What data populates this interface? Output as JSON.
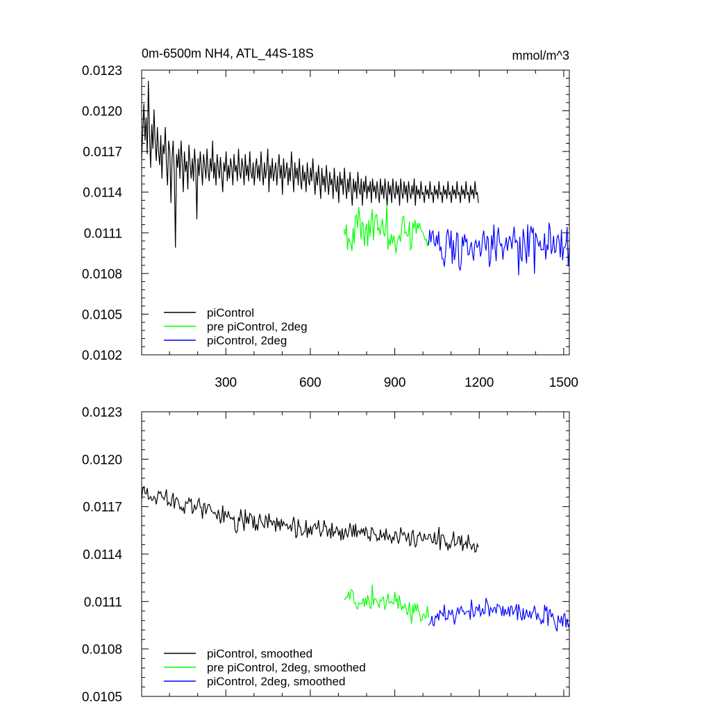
{
  "colors": {
    "piControl": "#000000",
    "pre_piControl_2deg": "#00ff00",
    "piControl_2deg": "#0000ff",
    "background": "#ffffff"
  },
  "chart_data": [
    {
      "type": "line",
      "title_left": "0m-6500m NH4, ATL_44S-18S",
      "title_right": "mmol/m^3",
      "xlabel": "",
      "ylabel": "",
      "xlim": [
        1,
        1520
      ],
      "ylim": [
        0.0102,
        0.0123
      ],
      "x_ticks": [
        300,
        600,
        900,
        1200,
        1500
      ],
      "x_tick_labels": [
        "300",
        "600",
        "900",
        "1200",
        "1500"
      ],
      "y_ticks": [
        0.0102,
        0.0105,
        0.0108,
        0.0111,
        0.0114,
        0.0117,
        0.012,
        0.0123
      ],
      "y_tick_labels": [
        "0.0102",
        "0.0105",
        "0.0108",
        "0.0111",
        "0.0114",
        "0.0117",
        "0.0120",
        "0.0123"
      ],
      "legend_position": "bottom-left",
      "grid": false,
      "series": [
        {
          "name": "piControl",
          "color": "#000000",
          "x_start": 1,
          "x_end": 1200,
          "step": 4,
          "trend": [
            [
              1,
              0.01175
            ],
            [
              300,
              0.0116
            ],
            [
              600,
              0.01155
            ],
            [
              900,
              0.01152
            ],
            [
              1200,
              0.01145
            ]
          ],
          "noise_amplitude": 0.00028,
          "values": [
            0.01165,
            0.01185,
            0.01205,
            0.01178,
            0.01195,
            0.01168,
            0.01222,
            0.01182,
            0.01158,
            0.0119,
            0.01172,
            0.01201,
            0.01176,
            0.01163,
            0.01188,
            0.0117,
            0.0116,
            0.01182,
            0.0115,
            0.01175,
            0.01168,
            0.01188,
            0.0116,
            0.01145,
            0.01178,
            0.0117,
            0.01132,
            0.01165,
            0.01178,
            0.01154,
            0.01099,
            0.01168,
            0.01158,
            0.01172,
            0.0115,
            0.01178,
            0.01162,
            0.0114,
            0.0117,
            0.01155,
            0.01163,
            0.01142,
            0.01175,
            0.0116,
            0.0115,
            0.01165,
            0.01148,
            0.01172,
            0.01158,
            0.0112,
            0.01165,
            0.01152,
            0.0117,
            0.01158,
            0.01145,
            0.01168,
            0.0116,
            0.0115,
            0.01172,
            0.01156,
            0.01148,
            0.01165,
            0.01155,
            0.01178,
            0.0115,
            0.01162,
            0.01145,
            0.01168,
            0.01158,
            0.0115,
            0.01166,
            0.01152,
            0.0114,
            0.01162,
            0.01155,
            0.0117,
            0.01148,
            0.0116,
            0.0115,
            0.01165,
            0.01158,
            0.01145,
            0.01168,
            0.01155,
            0.0116,
            0.01148,
            0.01172,
            0.01155,
            0.0115,
            0.01165,
            0.01158,
            0.01145,
            0.01168,
            0.01152,
            0.0116,
            0.01148,
            0.0117,
            0.01155,
            0.0115,
            0.01162,
            0.01145,
            0.01158,
            0.01165,
            0.0115,
            0.0116,
            0.01148,
            0.0117,
            0.01155,
            0.01145,
            0.01162,
            0.0115,
            0.01158,
            0.01172,
            0.0114,
            0.0116,
            0.0115,
            0.01165,
            0.01148,
            0.01155,
            0.01162,
            0.01145,
            0.01158,
            0.01168,
            0.0115,
            0.0116,
            0.01138,
            0.01165,
            0.0115,
            0.01155,
            0.01162,
            0.01145,
            0.01158,
            0.01148,
            0.0117,
            0.01155,
            0.0114,
            0.01162,
            0.0115,
            0.01158,
            0.01145,
            0.01165,
            0.0115,
            0.01142,
            0.0116,
            0.01148,
            0.01155,
            0.0114,
            0.01162,
            0.0115,
            0.01145,
            0.01158,
            0.01148,
            0.01165,
            0.0115,
            0.01138,
            0.01155,
            0.01145,
            0.0116,
            0.01148,
            0.01135,
            0.01158,
            0.01145,
            0.01152,
            0.0114,
            0.0116,
            0.01148,
            0.01138,
            0.01155,
            0.01145,
            0.0115,
            0.01135,
            0.01158,
            0.01145,
            0.0114,
            0.01152,
            0.01132,
            0.01155,
            0.01145,
            0.0115,
            0.01138,
            0.01158,
            0.01145,
            0.01135,
            0.0115,
            0.0114,
            0.01155,
            0.01142,
            0.0113,
            0.0115,
            0.0114,
            0.01148,
            0.01135,
            0.01155,
            0.01142,
            0.01138,
            0.0115,
            0.0113,
            0.01148,
            0.0114,
            0.01152,
            0.01135,
            0.01145,
            0.0114,
            0.01148,
            0.01132,
            0.0115,
            0.0114,
            0.01145,
            0.01135,
            0.01148,
            0.0114,
            0.01132,
            0.0115,
            0.01138,
            0.01145,
            0.01135,
            0.0115,
            0.0114,
            0.0113,
            0.01148,
            0.01138,
            0.01145,
            0.01132,
            0.0115,
            0.0114,
            0.01135,
            0.01148,
            0.01138,
            0.01145,
            0.0113,
            0.0115,
            0.0114,
            0.01135,
            0.01148,
            0.01138,
            0.01145,
            0.01132,
            0.01148,
            0.0114,
            0.01135,
            0.01145,
            0.01138,
            0.0115,
            0.0113,
            0.01145,
            0.01138,
            0.01142,
            0.01135,
            0.01148,
            0.01138,
            0.0114,
            0.01132,
            0.01145,
            0.01138,
            0.01142,
            0.01135,
            0.01148,
            0.01138,
            0.0114,
            0.01132,
            0.01145,
            0.01138,
            0.01142,
            0.01135,
            0.01148,
            0.01138,
            0.0114,
            0.01132,
            0.01145,
            0.01138,
            0.01142,
            0.01135,
            0.01148,
            0.01138,
            0.0114,
            0.01132,
            0.01145,
            0.01138,
            0.01142,
            0.01135,
            0.01148,
            0.01138,
            0.0114,
            0.01132,
            0.01145,
            0.01138,
            0.01142,
            0.01135,
            0.01148,
            0.01138,
            0.0114,
            0.01132,
            0.01145,
            0.01138,
            0.01142,
            0.01135,
            0.01148,
            0.01138,
            0.0114,
            0.01132,
            0.01145,
            0.01138,
            0.01142,
            0.01135
          ]
        },
        {
          "name": "pre piControl, 2deg",
          "color": "#00ff00",
          "x_start": 720,
          "x_end": 1020,
          "step": 4,
          "trend": [
            [
              720,
              0.01112
            ],
            [
              800,
              0.01115
            ],
            [
              900,
              0.0111
            ],
            [
              1020,
              0.01108
            ]
          ],
          "noise_amplitude": 0.00025
        },
        {
          "name": "piControl, 2deg",
          "color": "#0000ff",
          "x_start": 1020,
          "x_end": 1520,
          "step": 4,
          "trend": [
            [
              1020,
              0.01105
            ],
            [
              1100,
              0.011
            ],
            [
              1250,
              0.01098
            ],
            [
              1400,
              0.011
            ],
            [
              1520,
              0.01098
            ]
          ],
          "noise_amplitude": 0.00025
        }
      ]
    },
    {
      "type": "line",
      "title_left": "",
      "title_right": "",
      "xlabel": "",
      "ylabel": "",
      "xlim": [
        1,
        1520
      ],
      "ylim": [
        0.0105,
        0.0123
      ],
      "x_ticks": [
        300,
        600,
        900,
        1200,
        1500
      ],
      "x_tick_labels": [],
      "y_ticks": [
        0.0105,
        0.0108,
        0.0111,
        0.0114,
        0.0117,
        0.012,
        0.0123
      ],
      "y_tick_labels": [
        "0.0105",
        "0.0108",
        "0.0111",
        "0.0114",
        "0.0117",
        "0.0120",
        "0.0123"
      ],
      "legend_position": "bottom-left",
      "grid": false,
      "series": [
        {
          "name": "piControl, smoothed",
          "color": "#000000",
          "x_start": 1,
          "x_end": 1200,
          "step": 4,
          "trend": [
            [
              1,
              0.0118
            ],
            [
              200,
              0.0117
            ],
            [
              300,
              0.01163
            ],
            [
              600,
              0.01155
            ],
            [
              900,
              0.01152
            ],
            [
              1200,
              0.01145
            ]
          ],
          "noise_amplitude": 0.0001
        },
        {
          "name": "pre piControl, 2deg, smoothed",
          "color": "#00ff00",
          "x_start": 720,
          "x_end": 1020,
          "step": 4,
          "trend": [
            [
              720,
              0.01112
            ],
            [
              800,
              0.01112
            ],
            [
              900,
              0.0111
            ],
            [
              1020,
              0.011
            ]
          ],
          "noise_amplitude": 0.0001
        },
        {
          "name": "piControl, 2deg, smoothed",
          "color": "#0000ff",
          "x_start": 1020,
          "x_end": 1520,
          "step": 4,
          "trend": [
            [
              1020,
              0.01098
            ],
            [
              1100,
              0.01102
            ],
            [
              1250,
              0.01105
            ],
            [
              1400,
              0.01102
            ],
            [
              1520,
              0.01095
            ]
          ],
          "noise_amplitude": 0.0001
        }
      ]
    }
  ]
}
